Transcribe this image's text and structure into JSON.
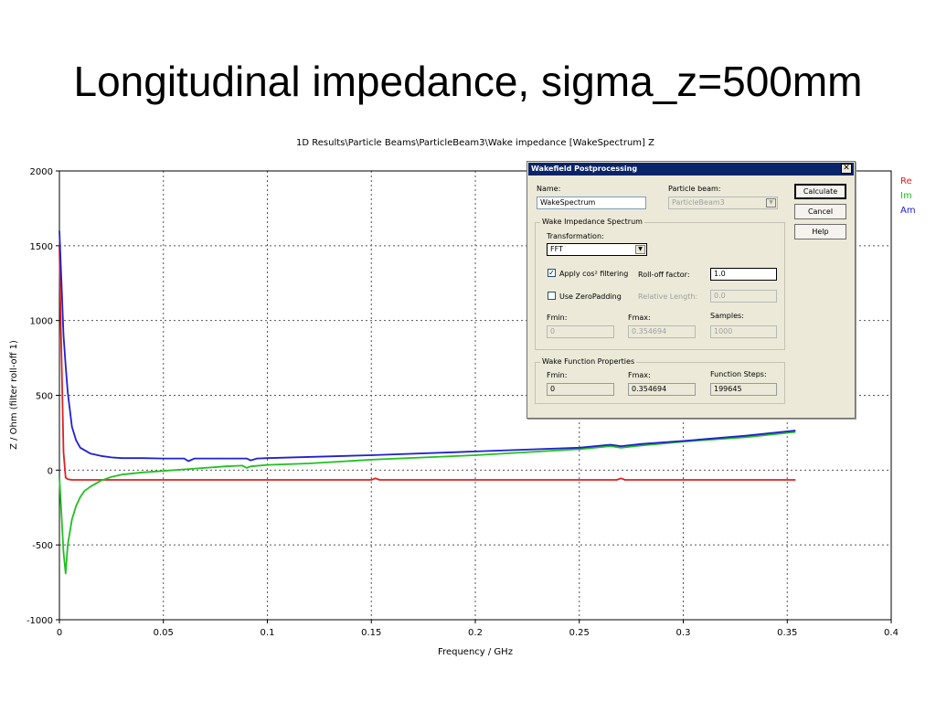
{
  "slide_title": "Longitudinal impedance, sigma_z=500mm",
  "chart_data": {
    "type": "line",
    "title": "1D Results\\Particle Beams\\ParticleBeam3\\Wake impedance [WakeSpectrum] Z",
    "xlabel": "Frequency / GHz",
    "ylabel": "Z / Ohm (filter roll-off 1)",
    "xlim": [
      0,
      0.4
    ],
    "ylim": [
      -1000,
      2000
    ],
    "xticks": [
      "0",
      "0.05",
      "0.1",
      "0.15",
      "0.2",
      "0.25",
      "0.3",
      "0.35",
      "0.4"
    ],
    "yticks": [
      "2000",
      "1500",
      "1000",
      "500",
      "0",
      "-500",
      "-1000"
    ],
    "grid": true,
    "legend_position": "right",
    "series": [
      {
        "name": "Re",
        "color": "#e02020",
        "x": [
          0,
          0.0006,
          0.0012,
          0.002,
          0.003,
          0.004,
          0.006,
          0.01,
          0.02,
          0.05,
          0.1,
          0.15,
          0.152,
          0.154,
          0.2,
          0.25,
          0.268,
          0.27,
          0.272,
          0.3,
          0.35,
          0.354
        ],
        "y": [
          1500,
          1000,
          650,
          120,
          -50,
          -60,
          -65,
          -65,
          -65,
          -65,
          -65,
          -65,
          -55,
          -65,
          -65,
          -65,
          -65,
          -55,
          -65,
          -65,
          -65,
          -65
        ]
      },
      {
        "name": "Im",
        "color": "#20c020",
        "x": [
          0,
          0.001,
          0.002,
          0.003,
          0.004,
          0.006,
          0.008,
          0.01,
          0.012,
          0.015,
          0.02,
          0.025,
          0.03,
          0.04,
          0.05,
          0.06,
          0.07,
          0.08,
          0.088,
          0.09,
          0.092,
          0.1,
          0.12,
          0.15,
          0.2,
          0.25,
          0.265,
          0.27,
          0.28,
          0.3,
          0.33,
          0.354
        ],
        "y": [
          -50,
          -300,
          -550,
          -690,
          -500,
          -330,
          -240,
          -180,
          -140,
          -110,
          -70,
          -45,
          -30,
          -15,
          -5,
          5,
          15,
          25,
          30,
          15,
          25,
          35,
          45,
          70,
          100,
          140,
          160,
          150,
          165,
          190,
          220,
          255
        ]
      },
      {
        "name": "Am",
        "color": "#2020d0",
        "x": [
          0,
          0.001,
          0.002,
          0.003,
          0.004,
          0.006,
          0.008,
          0.01,
          0.015,
          0.02,
          0.025,
          0.03,
          0.04,
          0.05,
          0.06,
          0.062,
          0.065,
          0.08,
          0.09,
          0.092,
          0.095,
          0.1,
          0.15,
          0.2,
          0.25,
          0.265,
          0.27,
          0.28,
          0.3,
          0.33,
          0.354
        ],
        "y": [
          1600,
          1250,
          900,
          700,
          520,
          290,
          200,
          150,
          110,
          95,
          85,
          80,
          80,
          78,
          78,
          60,
          78,
          78,
          78,
          65,
          78,
          80,
          100,
          125,
          150,
          170,
          160,
          175,
          195,
          230,
          265
        ]
      }
    ]
  },
  "dialog": {
    "title": "Wakefield Postprocessing",
    "close_glyph": "✕",
    "name_label": "Name:",
    "name_value": "WakeSpectrum",
    "particle_beam_label": "Particle beam:",
    "particle_beam_value": "ParticleBeam3",
    "calculate_label": "Calculate",
    "cancel_label": "Cancel",
    "help_label": "Help",
    "spectrum_group_label": "Wake Impedance Spectrum",
    "transformation_label": "Transformation:",
    "transformation_value": "FFT",
    "apply_cos_label": "Apply cos² filtering",
    "apply_cos_checked": "✓",
    "rolloff_label": "Roll-off factor:",
    "rolloff_value": "1.0",
    "zeropadding_label": "Use ZeroPadding",
    "relative_length_label": "Relative Length:",
    "relative_length_value": "0.0",
    "fmin_label": "Fmin:",
    "fmin_value": "0",
    "fmax_label": "Fmax:",
    "fmax_value": "0.354694",
    "samples_label": "Samples:",
    "samples_value": "1000",
    "wakefunc_group_label": "Wake Function Properties",
    "wf_fmin_label": "Fmin:",
    "wf_fmin_value": "0",
    "wf_fmax_label": "Fmax:",
    "wf_fmax_value": "0.354694",
    "function_steps_label": "Function Steps:",
    "function_steps_value": "199645"
  }
}
